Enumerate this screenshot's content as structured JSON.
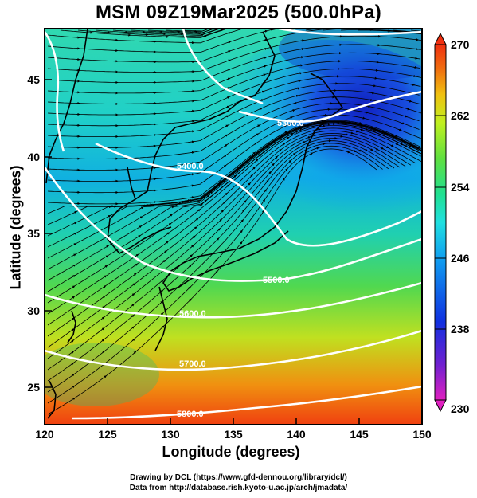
{
  "title": "MSM 09Z19Mar2025 (500.0hPa)",
  "x_axis": {
    "label": "Longitude (degrees)",
    "ticks": [
      "120",
      "125",
      "130",
      "135",
      "140",
      "145",
      "150"
    ],
    "range": [
      120,
      150
    ]
  },
  "y_axis": {
    "label": "Latitude  (degrees)",
    "ticks": [
      "25",
      "30",
      "35",
      "40",
      "45"
    ],
    "range": [
      22.4,
      47.6
    ]
  },
  "colorbar": {
    "ticks": [
      "270",
      "262",
      "254",
      "246",
      "238",
      "230"
    ],
    "range": [
      230,
      270
    ],
    "colors": [
      "#e020c0",
      "#7020d0",
      "#1030e0",
      "#10a0f0",
      "#20e0e0",
      "#20e090",
      "#60e040",
      "#c0f020",
      "#f0c010",
      "#f07010",
      "#f03010"
    ]
  },
  "contours": [
    {
      "label": "5300.0"
    },
    {
      "label": "5400.0"
    },
    {
      "label": "5500.0"
    },
    {
      "label": "5600.0"
    },
    {
      "label": "5700.0"
    },
    {
      "label": "5800.0"
    }
  ],
  "credits": {
    "line1": "Drawing by DCL (https://www.gfd-dennou.org/library/dcl/)",
    "line2": "Data from http://database.rish.kyoto-u.ac.jp/arch/jmadata/"
  }
}
